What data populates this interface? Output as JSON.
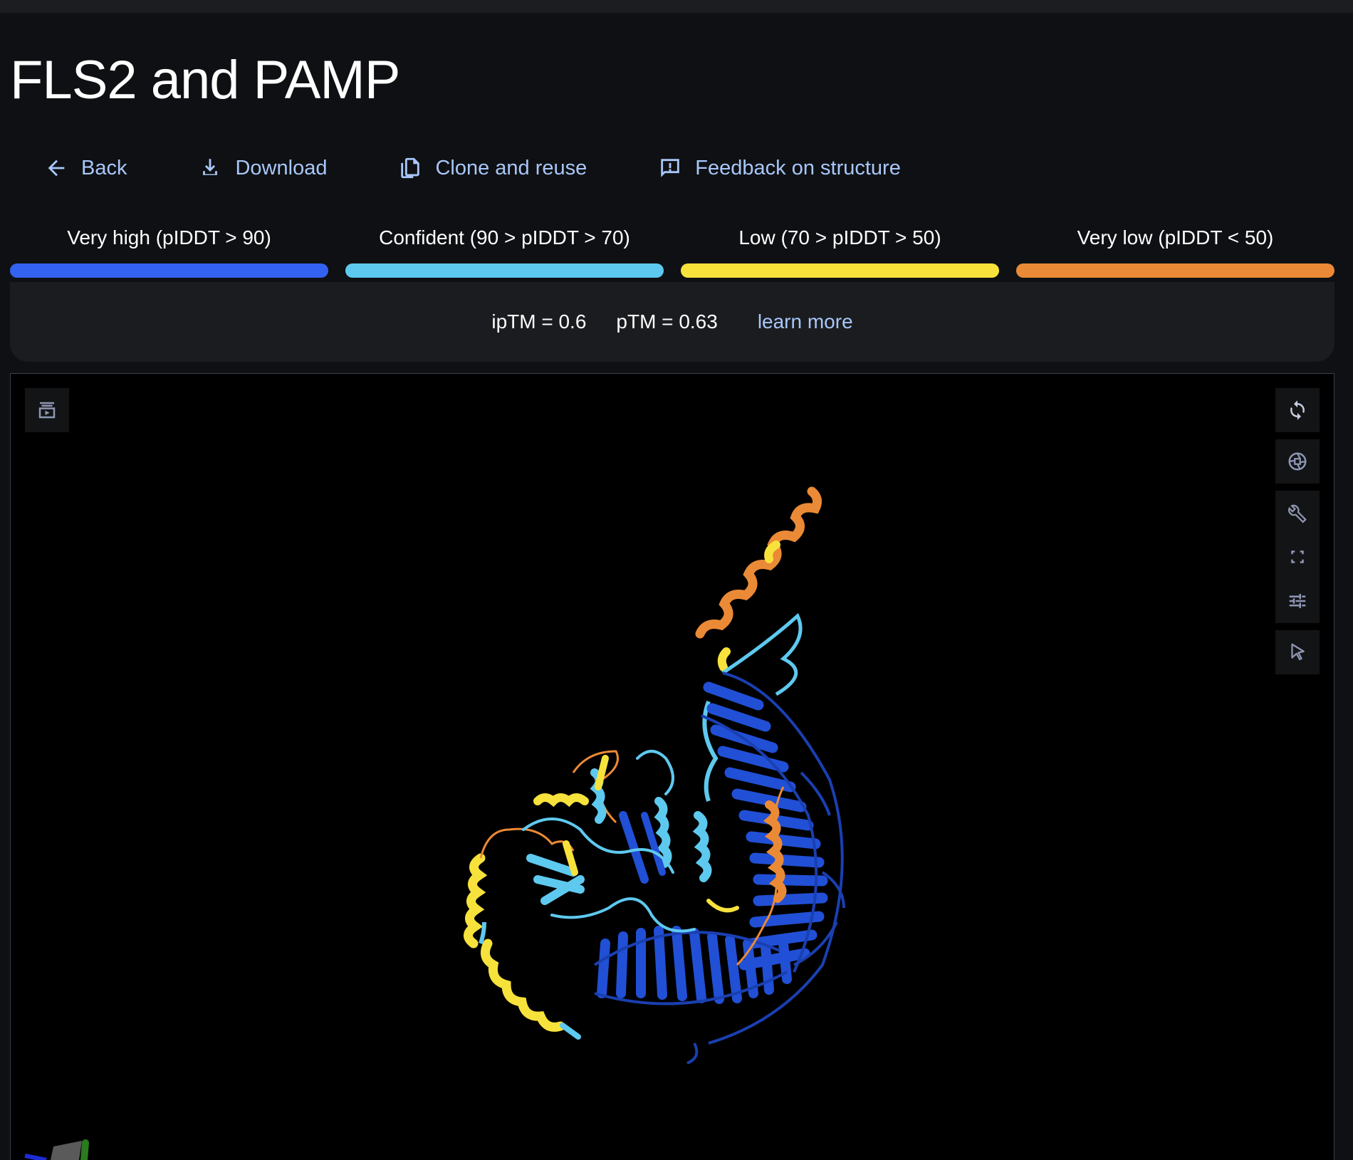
{
  "title": "FLS2 and PAMP",
  "toolbar": {
    "back_label": "Back",
    "download_label": "Download",
    "clone_label": "Clone and reuse",
    "feedback_label": "Feedback on structure"
  },
  "legend": {
    "items": [
      {
        "label": "Very high (pIDDT > 90)",
        "color": "#3462f0"
      },
      {
        "label": "Confident (90 > pIDDT > 70)",
        "color": "#5ec9ef"
      },
      {
        "label": "Low (70 > pIDDT > 50)",
        "color": "#f7e23c"
      },
      {
        "label": "Very low (pIDDT < 50)",
        "color": "#eb8a36"
      }
    ]
  },
  "metrics": {
    "iptm": "ipTM = 0.6",
    "ptm": "pTM = 0.63",
    "learn_more": "learn more"
  },
  "viewer": {
    "left_tool_icon": "animation-icon",
    "right_tools": [
      "spin-icon",
      "snapshot-icon",
      "wrench-icon",
      "fullscreen-icon",
      "sliders-icon",
      "pointer-icon"
    ]
  }
}
